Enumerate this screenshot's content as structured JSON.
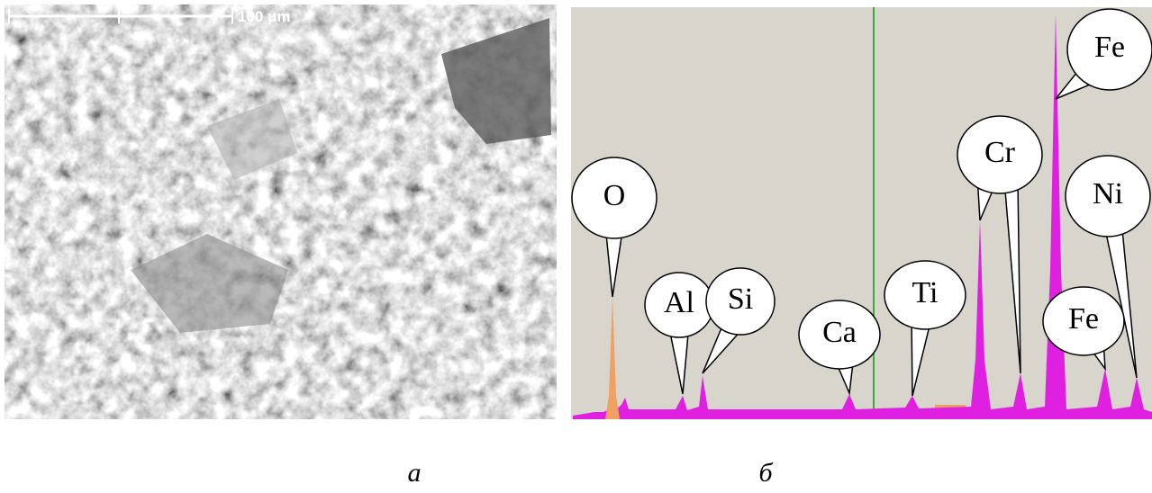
{
  "figure": {
    "panel_a": {
      "scale_bar": "100 μm",
      "caption": "а"
    },
    "panel_b": {
      "labels": [
        "O",
        "Al",
        "Si",
        "Ca",
        "Ti",
        "Cr",
        "Fe",
        "Ni",
        "Fe"
      ],
      "caption": "б"
    }
  }
}
